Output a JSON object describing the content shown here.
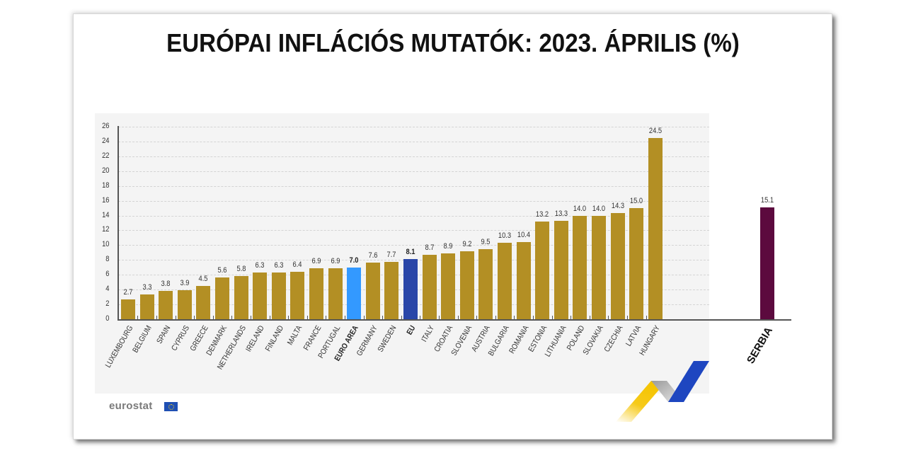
{
  "title": "EURÓPAI INFLÁCIÓS MUTATÓK: 2023. ÁPRILIS (%)",
  "logo": {
    "text": "eurostat",
    "icon": "eu-flag-icon"
  },
  "colors": {
    "default_bar": "#b38f24",
    "euro_area_bar": "#3399ff",
    "eu_bar": "#2a46a8",
    "serbia_bar": "#5c0a3e",
    "plot_background": "#f4f4f4",
    "ribbon_yellow": "#f5c400",
    "ribbon_gray": "#c8c8c8",
    "ribbon_blue": "#1e46c0"
  },
  "chart_data": {
    "type": "bar",
    "title": "EURÓPAI INFLÁCIÓS MUTATÓK: 2023. ÁPRILIS (%)",
    "xlabel": "",
    "ylabel": "",
    "ylim": [
      0,
      26
    ],
    "yticks": [
      0,
      2,
      4,
      6,
      8,
      10,
      12,
      14,
      16,
      18,
      20,
      22,
      24,
      26
    ],
    "grid": true,
    "legend": null,
    "categories": [
      "LUXEMBOURG",
      "BELGIUM",
      "SPAIN",
      "CYPRUS",
      "GREECE",
      "DENMARK",
      "NETHERLANDS",
      "IRELAND",
      "FINLAND",
      "MALTA",
      "FRANCE",
      "PORTUGAL",
      "EURO AREA",
      "GERMANY",
      "SWEDEN",
      "EU",
      "ITALY",
      "CROATIA",
      "SLOVENIA",
      "AUSTRIA",
      "BULGARIA",
      "ROMANIA",
      "ESTONIA",
      "LITHUANIA",
      "POLAND",
      "SLOVAKIA",
      "CZECHIA",
      "LATVIA",
      "HUNGARY",
      "SERBIA"
    ],
    "values": [
      2.7,
      3.3,
      3.8,
      3.9,
      4.5,
      5.6,
      5.8,
      6.3,
      6.3,
      6.4,
      6.9,
      6.9,
      7.0,
      7.6,
      7.7,
      8.1,
      8.7,
      8.9,
      9.2,
      9.5,
      10.3,
      10.4,
      13.2,
      13.3,
      14.0,
      14.0,
      14.3,
      15.0,
      24.5,
      15.1
    ],
    "value_labels": [
      "2.7",
      "3.3",
      "3.8",
      "3.9",
      "4.5",
      "5.6",
      "5.8",
      "6.3",
      "6.3",
      "6.4",
      "6.9",
      "6.9",
      "7.0",
      "7.6",
      "7.7",
      "8.1",
      "8.7",
      "8.9",
      "9.2",
      "9.5",
      "10.3",
      "10.4",
      "13.2",
      "13.3",
      "14.0",
      "14.0",
      "14.3",
      "15.0",
      "24.5",
      "15.1"
    ],
    "highlighted": {
      "EURO AREA": "#3399ff",
      "EU": "#2a46a8",
      "SERBIA": "#5c0a3e"
    },
    "bold_labels": [
      "EURO AREA",
      "EU",
      "SERBIA"
    ]
  }
}
